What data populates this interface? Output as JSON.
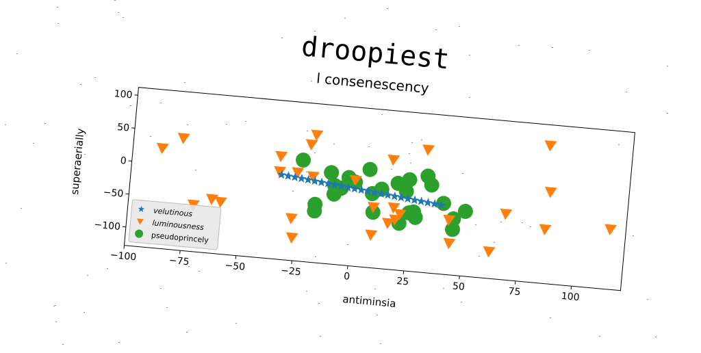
{
  "page": {
    "title": "droopiest",
    "subtitle": "l consenescency"
  },
  "chart_data": {
    "type": "scatter",
    "xlabel": "antiminsia",
    "ylabel": "superaerially",
    "xlim": [
      -100,
      122
    ],
    "ylim": [
      -128,
      112
    ],
    "xticks": [
      -100,
      -75,
      -50,
      -25,
      0,
      25,
      50,
      75,
      100
    ],
    "yticks": [
      100,
      50,
      0,
      -50,
      -100
    ],
    "grid": false,
    "legend": {
      "placement": "lower-left",
      "entries": [
        "velutinous",
        "luminousness",
        "pseudoprincely"
      ]
    },
    "series": [
      {
        "name": "velutinous",
        "marker": "star",
        "color": "#1f77b4",
        "points": [
          [
            -33,
            0
          ],
          [
            -30,
            -1
          ],
          [
            -27,
            -2
          ],
          [
            -24,
            -3
          ],
          [
            -21,
            -4
          ],
          [
            -18,
            -5
          ],
          [
            -15,
            -6
          ],
          [
            -12,
            -7
          ],
          [
            -9,
            -8
          ],
          [
            -6,
            -9
          ],
          [
            -3,
            -10
          ],
          [
            0,
            -11
          ],
          [
            3,
            -12
          ],
          [
            6,
            -13
          ],
          [
            9,
            -14
          ],
          [
            12,
            -15
          ],
          [
            15,
            -16
          ],
          [
            18,
            -17
          ],
          [
            21,
            -18
          ],
          [
            24,
            -19
          ],
          [
            27,
            -20
          ],
          [
            30,
            -21
          ],
          [
            33,
            -22
          ],
          [
            36,
            -23
          ],
          [
            39,
            -24
          ]
        ]
      },
      {
        "name": "luminousness",
        "marker": "triangle_down",
        "color": "#ff7f0e",
        "points": [
          [
            -87,
            24
          ],
          [
            -78,
            42
          ],
          [
            -71,
            -57
          ],
          [
            -63,
            -46
          ],
          [
            -59,
            -49
          ],
          [
            -34,
            28
          ],
          [
            -34,
            5
          ],
          [
            -26,
            6
          ],
          [
            -27,
            -64
          ],
          [
            -26,
            -93
          ],
          [
            -21,
            50
          ],
          [
            -19,
            65
          ],
          [
            -19,
            2
          ],
          [
            0,
            2
          ],
          [
            9,
            -36
          ],
          [
            9,
            -78
          ],
          [
            16,
            38
          ],
          [
            16,
            -58
          ],
          [
            18,
            -34
          ],
          [
            19,
            -52
          ],
          [
            21,
            -43
          ],
          [
            31,
            58
          ],
          [
            43,
            -45
          ],
          [
            44,
            -80
          ],
          [
            62,
            -87
          ],
          [
            68,
            -28
          ],
          [
            85,
            81
          ],
          [
            86,
            -46
          ],
          [
            87,
            11
          ],
          [
            115,
            -37
          ]
        ]
      },
      {
        "name": "pseudoprincely",
        "marker": "circle",
        "color": "#2ca02c",
        "points": [
          [
            -24,
            25
          ],
          [
            -17,
            -40
          ],
          [
            -17,
            -50
          ],
          [
            -11,
            10
          ],
          [
            -9,
            -9
          ],
          [
            -9,
            -22
          ],
          [
            -6,
            -12
          ],
          [
            -3,
            5
          ],
          [
            0,
            -1
          ],
          [
            6,
            20
          ],
          [
            8,
            -16
          ],
          [
            9,
            -44
          ],
          [
            12,
            -8
          ],
          [
            19,
            3
          ],
          [
            21,
            -57
          ],
          [
            23,
            -8
          ],
          [
            24,
            10
          ],
          [
            25,
            -40
          ],
          [
            27,
            -38
          ],
          [
            28,
            -46
          ],
          [
            32,
            18
          ],
          [
            34,
            5
          ],
          [
            40,
            -21
          ],
          [
            45,
            -43
          ],
          [
            45,
            -59
          ],
          [
            50,
            -30
          ]
        ]
      }
    ]
  }
}
